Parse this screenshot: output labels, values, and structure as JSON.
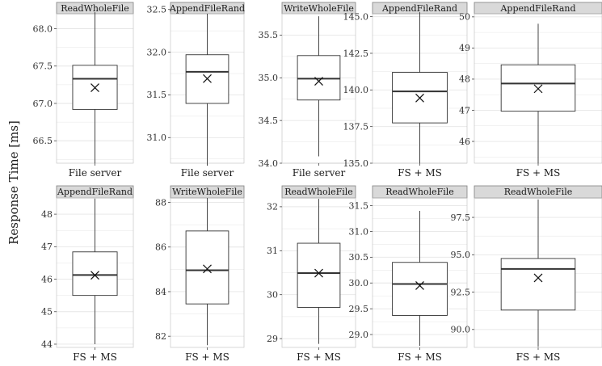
{
  "chart_data": {
    "type": "boxplot",
    "ylabel": "Response Time [ms]",
    "grid": true,
    "colors": {
      "strip_bg": "#d9d9d9",
      "strip_border": "#7f7f7f",
      "grid": "#e6e6e6",
      "box": "#333333"
    },
    "panels": [
      {
        "title": "ReadWholeFile",
        "category": "File server",
        "ylim": [
          66.2,
          68.2
        ],
        "ticks": [
          66.5,
          67.0,
          67.5,
          68.0
        ],
        "tick_labels": [
          "66.5",
          "67.0",
          "67.5",
          "68.0"
        ],
        "whisker_low": 66.2,
        "q1": 66.92,
        "median": 67.33,
        "q3": 67.51,
        "whisker_high": 68.22,
        "mean": 67.21
      },
      {
        "title": "AppendFileRand",
        "category": "File server",
        "ylim": [
          30.7,
          32.45
        ],
        "ticks": [
          31.0,
          31.5,
          32.0,
          32.5
        ],
        "tick_labels": [
          "31.0",
          "31.5",
          "32.0",
          "32.5"
        ],
        "whisker_low": 30.67,
        "q1": 31.4,
        "median": 31.77,
        "q3": 31.97,
        "whisker_high": 32.45,
        "mean": 31.69
      },
      {
        "title": "WriteWholeFile",
        "category": "File server",
        "ylim": [
          34.0,
          35.75
        ],
        "ticks": [
          34.0,
          34.5,
          35.0,
          35.5
        ],
        "tick_labels": [
          "34.0",
          "34.5",
          "35.0",
          "35.5"
        ],
        "whisker_low": 34.08,
        "q1": 34.74,
        "median": 34.99,
        "q3": 35.26,
        "whisker_high": 35.72,
        "mean": 34.96
      },
      {
        "title": "AppendFileRand",
        "category": "FS + MS",
        "ylim": [
          135.0,
          145.2
        ],
        "ticks": [
          135.0,
          137.5,
          140.0,
          142.5,
          145.0
        ],
        "tick_labels": [
          "135.0",
          "137.5",
          "140.0",
          "142.5",
          "145.0"
        ],
        "whisker_low": 135.0,
        "q1": 137.75,
        "median": 139.9,
        "q3": 141.2,
        "whisker_high": 145.3,
        "mean": 139.45
      },
      {
        "title": "AppendFileRand",
        "category": "FS + MS",
        "ylim": [
          45.3,
          50.1
        ],
        "ticks": [
          46,
          47,
          48,
          49,
          50
        ],
        "tick_labels": [
          "46",
          "47",
          "48",
          "49",
          "50"
        ],
        "whisker_low": 45.3,
        "q1": 46.97,
        "median": 47.86,
        "q3": 48.46,
        "whisker_high": 49.78,
        "mean": 47.69
      },
      {
        "title": "AppendFileRand",
        "category": "FS + MS",
        "ylim": [
          43.9,
          48.5
        ],
        "ticks": [
          44,
          45,
          46,
          47,
          48
        ],
        "tick_labels": [
          "44",
          "45",
          "46",
          "47",
          "48"
        ],
        "whisker_low": 44.0,
        "q1": 45.5,
        "median": 46.13,
        "q3": 46.84,
        "whisker_high": 48.48,
        "mean": 46.12
      },
      {
        "title": "WriteWholeFile",
        "category": "FS + MS",
        "ylim": [
          81.5,
          88.2
        ],
        "ticks": [
          82,
          84,
          86,
          88
        ],
        "tick_labels": [
          "82",
          "84",
          "86",
          "88"
        ],
        "whisker_low": 81.6,
        "q1": 83.45,
        "median": 84.96,
        "q3": 86.72,
        "whisker_high": 88.2,
        "mean": 85.02
      },
      {
        "title": "ReadWholeFile",
        "category": "FS + MS",
        "ylim": [
          28.8,
          32.2
        ],
        "ticks": [
          29,
          30,
          31,
          32
        ],
        "tick_labels": [
          "29",
          "30",
          "31",
          "32"
        ],
        "whisker_low": 28.88,
        "q1": 29.71,
        "median": 30.49,
        "q3": 31.17,
        "whisker_high": 32.18,
        "mean": 30.49
      },
      {
        "title": "ReadWholeFile",
        "category": "FS + MS",
        "ylim": [
          28.75,
          31.65
        ],
        "ticks": [
          29.0,
          29.5,
          30.0,
          30.5,
          31.0,
          31.5
        ],
        "tick_labels": [
          "29.0",
          "29.5",
          "30.0",
          "30.5",
          "31.0",
          "31.5"
        ],
        "whisker_low": 28.78,
        "q1": 29.37,
        "median": 29.98,
        "q3": 30.4,
        "whisker_high": 31.4,
        "mean": 29.95
      },
      {
        "title": "ReadWholeFile",
        "category": "FS + MS",
        "ylim": [
          88.8,
          98.8
        ],
        "ticks": [
          90.0,
          92.5,
          95.0,
          97.5
        ],
        "tick_labels": [
          "90.0",
          "92.5",
          "95.0",
          "97.5"
        ],
        "whisker_low": 88.85,
        "q1": 91.3,
        "median": 94.05,
        "q3": 94.75,
        "whisker_high": 98.7,
        "mean": 93.45
      }
    ]
  }
}
